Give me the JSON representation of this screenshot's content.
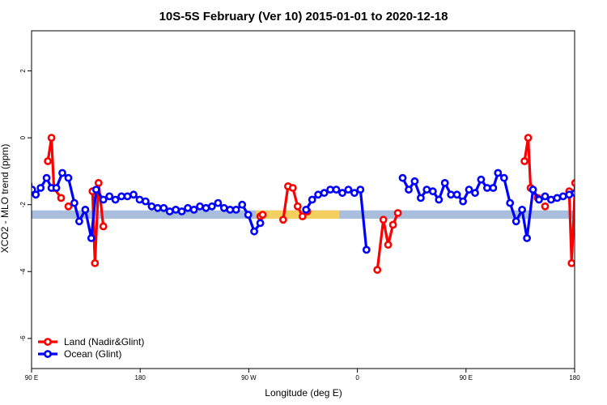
{
  "chart_data": {
    "type": "line",
    "title": "10S-5S February (Ver 10)   2015-01-01 to 2020-12-18",
    "xlabel": "Longitude (deg E)",
    "ylabel": "XCO2 - MLO trend (ppm)",
    "xlim": [
      90,
      540
    ],
    "ylim": [
      -6.9,
      3.2
    ],
    "x_ticks": [
      {
        "value": 90,
        "label": "90 E"
      },
      {
        "value": 180,
        "label": "180"
      },
      {
        "value": 270,
        "label": "90 W"
      },
      {
        "value": 360,
        "label": "0"
      },
      {
        "value": 450,
        "label": "90 E"
      },
      {
        "value": 540,
        "label": "180"
      }
    ],
    "y_ticks": [
      {
        "value": 2,
        "label": "2"
      },
      {
        "value": 0,
        "label": "0"
      },
      {
        "value": -2,
        "label": "-2"
      },
      {
        "value": -4,
        "label": "-4"
      },
      {
        "value": -6,
        "label": "-6"
      }
    ],
    "grid": false,
    "legend_position": "bottom-left",
    "background_band": {
      "y_range": [
        -2.42,
        -2.17
      ],
      "color": "#a8bedc",
      "highlight_color": "#f5d060",
      "highlight_x_ranges": [
        [
          276,
          345
        ]
      ]
    },
    "series": [
      {
        "name": "Land (Nadir&Glint)",
        "color": "#ff0000",
        "segments": [
          [
            [
              103.5,
              -0.7
            ],
            [
              106.5,
              0.0
            ],
            [
              108.5,
              -1.5
            ],
            [
              114.5,
              -1.8
            ]
          ],
          [
            [
              120.5,
              -2.05
            ]
          ],
          [
            [
              140.5,
              -1.6
            ],
            [
              142.5,
              -3.75
            ],
            [
              145.5,
              -1.35
            ],
            [
              149.5,
              -2.65
            ]
          ],
          [
            [
              279.5,
              -2.35
            ],
            [
              281.5,
              -2.3
            ]
          ],
          [
            [
              298.5,
              -2.45
            ],
            [
              302.5,
              -1.45
            ],
            [
              306.5,
              -1.5
            ],
            [
              310.5,
              -2.05
            ],
            [
              314.5,
              -2.35
            ],
            [
              318.5,
              -2.2
            ]
          ],
          [
            [
              376.5,
              -3.95
            ],
            [
              381.5,
              -2.45
            ],
            [
              385.5,
              -3.2
            ],
            [
              389.5,
              -2.6
            ],
            [
              393.5,
              -2.25
            ]
          ],
          [
            [
              498.5,
              -0.7
            ],
            [
              501.5,
              0.0
            ],
            [
              503.5,
              -1.5
            ],
            [
              509.5,
              -1.8
            ]
          ],
          [
            [
              515.5,
              -2.05
            ]
          ],
          [
            [
              535.5,
              -1.6
            ],
            [
              537.5,
              -3.75
            ],
            [
              540.5,
              -1.35
            ],
            [
              544.5,
              -2.65
            ]
          ]
        ]
      },
      {
        "name": "Ocean (Glint)",
        "color": "#0000ff",
        "segments": [
          [
            [
              87.5,
              -1.4
            ],
            [
              90.5,
              -1.55
            ],
            [
              93.5,
              -1.7
            ],
            [
              97.5,
              -1.5
            ],
            [
              102.5,
              -1.2
            ],
            [
              106.5,
              -1.5
            ],
            [
              110.5,
              -1.5
            ],
            [
              115.5,
              -1.05
            ],
            [
              120.5,
              -1.2
            ],
            [
              125.5,
              -1.95
            ],
            [
              129.5,
              -2.5
            ],
            [
              134.5,
              -2.15
            ],
            [
              139.5,
              -3.0
            ],
            [
              143.5,
              -1.55
            ],
            [
              149.5,
              -1.85
            ],
            [
              154.5,
              -1.75
            ],
            [
              159.5,
              -1.85
            ],
            [
              164.5,
              -1.75
            ],
            [
              169.5,
              -1.75
            ],
            [
              174.5,
              -1.7
            ],
            [
              179.5,
              -1.85
            ],
            [
              184.5,
              -1.9
            ],
            [
              189.5,
              -2.05
            ],
            [
              194.5,
              -2.1
            ],
            [
              199.5,
              -2.1
            ],
            [
              204.5,
              -2.2
            ],
            [
              209.5,
              -2.15
            ],
            [
              214.5,
              -2.2
            ],
            [
              219.5,
              -2.1
            ],
            [
              224.5,
              -2.15
            ],
            [
              229.5,
              -2.05
            ],
            [
              234.5,
              -2.1
            ],
            [
              239.5,
              -2.05
            ],
            [
              244.5,
              -1.95
            ],
            [
              249.5,
              -2.1
            ],
            [
              254.5,
              -2.15
            ],
            [
              259.5,
              -2.15
            ],
            [
              264.5,
              -2.0
            ],
            [
              269.5,
              -2.3
            ],
            [
              274.5,
              -2.8
            ],
            [
              279.5,
              -2.55
            ]
          ],
          [
            [
              317.5,
              -2.15
            ],
            [
              322.5,
              -1.85
            ],
            [
              327.5,
              -1.7
            ],
            [
              332.5,
              -1.65
            ],
            [
              337.5,
              -1.55
            ],
            [
              342.5,
              -1.55
            ],
            [
              347.5,
              -1.65
            ],
            [
              352.5,
              -1.55
            ],
            [
              357.5,
              -1.65
            ],
            [
              362.5,
              -1.55
            ],
            [
              367.5,
              -3.35
            ]
          ],
          [
            [
              397.5,
              -1.2
            ],
            [
              402.5,
              -1.55
            ],
            [
              407.5,
              -1.3
            ],
            [
              412.5,
              -1.8
            ],
            [
              417.5,
              -1.55
            ],
            [
              422.5,
              -1.6
            ],
            [
              427.5,
              -1.85
            ],
            [
              432.5,
              -1.35
            ],
            [
              437.5,
              -1.7
            ],
            [
              442.5,
              -1.7
            ],
            [
              447.5,
              -1.9
            ],
            [
              452.5,
              -1.55
            ],
            [
              457.5,
              -1.65
            ],
            [
              462.5,
              -1.25
            ],
            [
              467.5,
              -1.5
            ],
            [
              472.5,
              -1.5
            ],
            [
              476.5,
              -1.05
            ],
            [
              481.5,
              -1.2
            ],
            [
              486.5,
              -1.95
            ],
            [
              491.5,
              -2.5
            ],
            [
              496.5,
              -2.15
            ],
            [
              500.5,
              -3.0
            ],
            [
              505.5,
              -1.55
            ],
            [
              510.5,
              -1.85
            ],
            [
              515.5,
              -1.75
            ],
            [
              520.5,
              -1.85
            ],
            [
              525.5,
              -1.8
            ],
            [
              530.5,
              -1.75
            ],
            [
              535.5,
              -1.7
            ],
            [
              540.5,
              -1.65
            ]
          ]
        ]
      }
    ]
  }
}
